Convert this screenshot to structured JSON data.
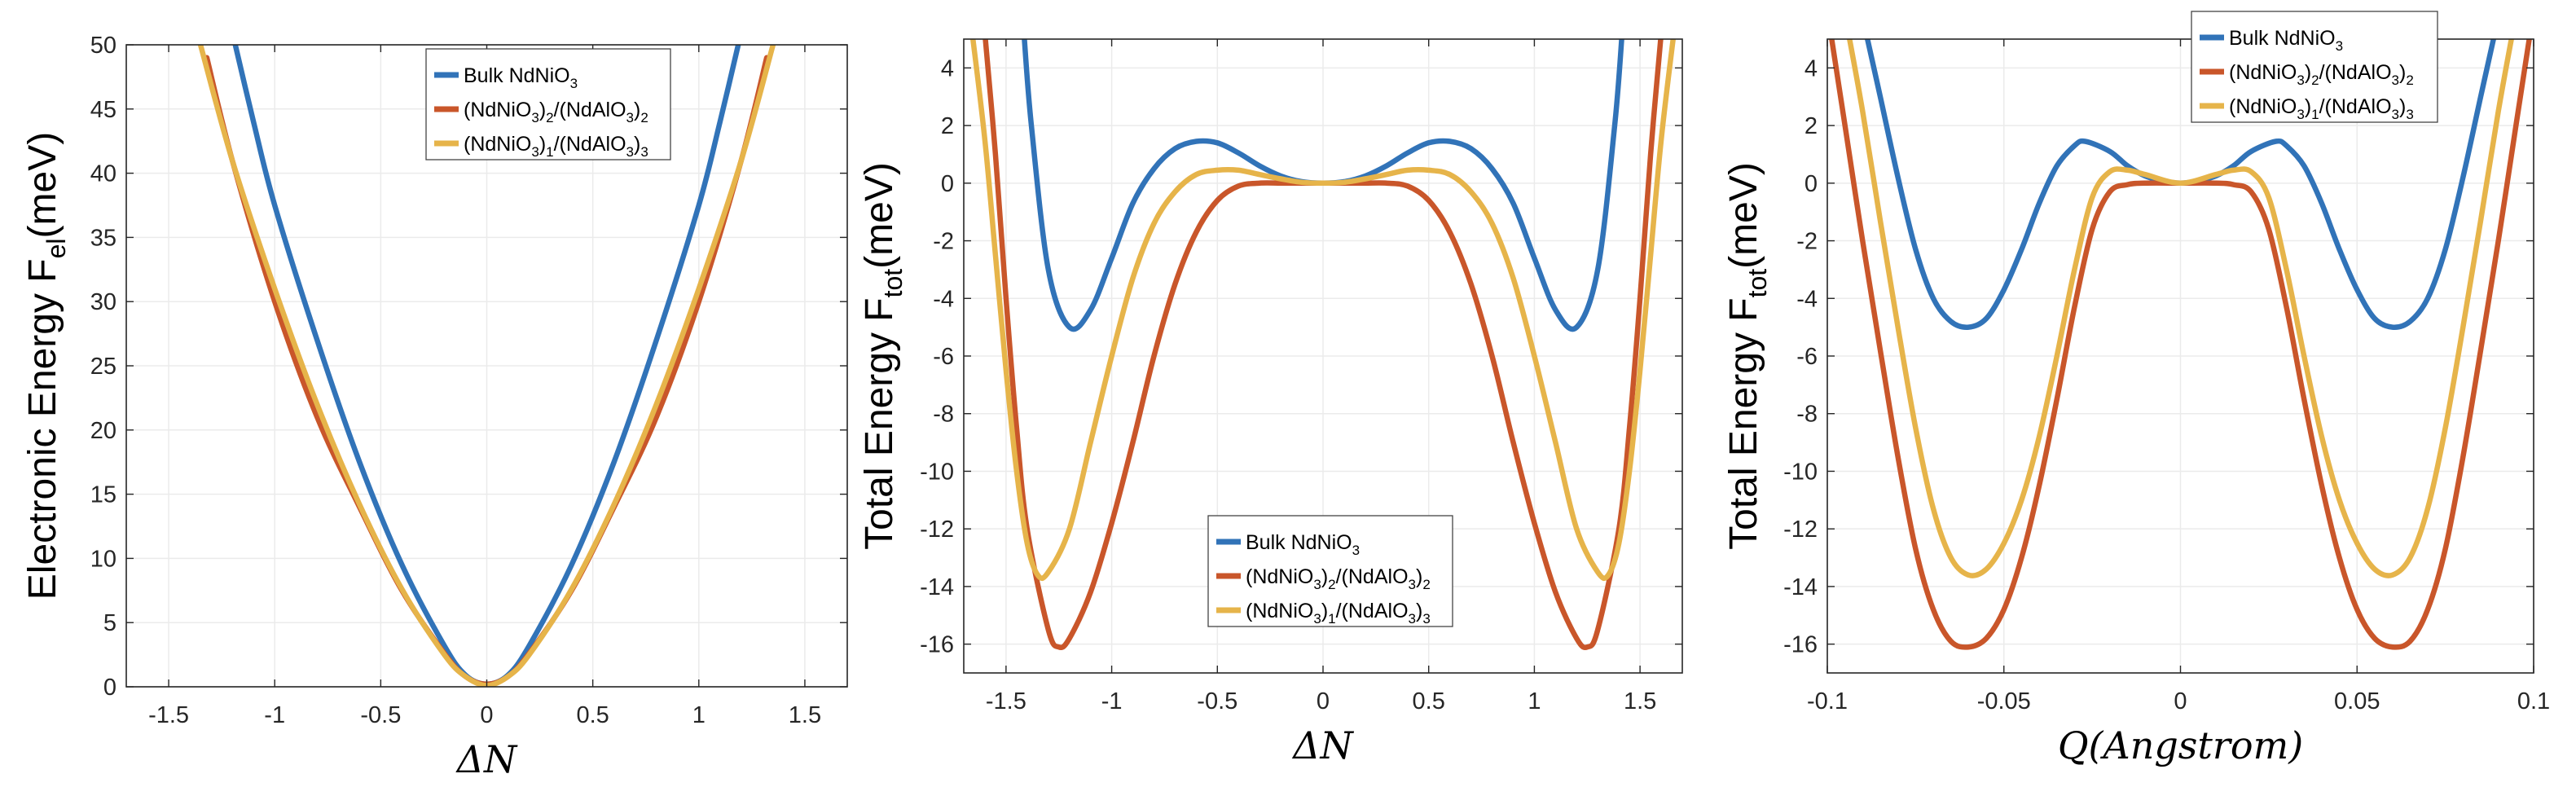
{
  "colors": {
    "bulk": "#3173B8",
    "n2": "#C9562A",
    "n1": "#E6B44A",
    "grid": "#EBEBEB",
    "axis": "#262626"
  },
  "chart_data": [
    {
      "type": "line",
      "ylabel": {
        "main": "Electronic Energy F",
        "sub": "el",
        "tail": "(meV)"
      },
      "xlabel": "ΔN",
      "xlim": [
        -1.7,
        1.7
      ],
      "ylim": [
        0,
        50
      ],
      "xticks": [
        "-1.5",
        "-1",
        "-0.5",
        "0",
        "0.5",
        "1",
        "1.5"
      ],
      "xtick_values": [
        -1.5,
        -1,
        -0.5,
        0,
        0.5,
        1,
        1.5
      ],
      "yticks": [
        "0",
        "5",
        "10",
        "15",
        "20",
        "25",
        "30",
        "35",
        "40",
        "45",
        "50"
      ],
      "ytick_values": [
        0,
        5,
        10,
        15,
        20,
        25,
        30,
        35,
        40,
        45,
        50
      ],
      "legend_position": "top-center",
      "legend": [
        {
          "key": "bulk",
          "main": "Bulk NdNiO",
          "sub1": "3",
          "mid": "",
          "sub2": "",
          "tail": ""
        },
        {
          "key": "n2",
          "main": "(NdNiO",
          "sub1": "3",
          "mid": ")",
          "sub2": "2",
          "tail": "/(NdAlO",
          "sub3": "3",
          "end": ")",
          "sub4": "2"
        },
        {
          "key": "n1",
          "main": "(NdNiO",
          "sub1": "3",
          "mid": ")",
          "sub2": "1",
          "tail": "/(NdAlO",
          "sub3": "3",
          "end": ")",
          "sub4": "3"
        }
      ],
      "series": [
        {
          "name": "Bulk NdNiO3",
          "key": "bulk",
          "x": [
            -1.2,
            -1.1,
            -1.0,
            -0.8,
            -0.6,
            -0.4,
            -0.2,
            -0.1,
            0,
            0.1,
            0.2,
            0.4,
            0.6,
            0.8,
            1.0,
            1.1,
            1.2
          ],
          "y": [
            51.0,
            44.0,
            37.5,
            27.0,
            17.5,
            9.5,
            3.2,
            0.9,
            0.2,
            0.9,
            3.2,
            9.5,
            17.5,
            27.0,
            37.5,
            44.0,
            51.0
          ]
        },
        {
          "name": "(NdNiO3)2/(NdAlO3)2",
          "key": "n2",
          "x": [
            -1.32,
            -1.2,
            -1.0,
            -0.8,
            -0.6,
            -0.4,
            -0.2,
            -0.1,
            0,
            0.1,
            0.2,
            0.4,
            0.6,
            0.8,
            1.0,
            1.2,
            1.32
          ],
          "y": [
            49.0,
            41.0,
            30.0,
            21.0,
            14.0,
            7.5,
            2.6,
            0.8,
            0.2,
            0.8,
            2.6,
            7.5,
            14.0,
            21.0,
            30.0,
            41.0,
            49.0
          ]
        },
        {
          "name": "(NdNiO3)1/(NdAlO3)3",
          "key": "n1",
          "x": [
            -1.35,
            -1.2,
            -1.0,
            -0.8,
            -0.6,
            -0.4,
            -0.2,
            -0.1,
            0,
            0.1,
            0.2,
            0.4,
            0.6,
            0.8,
            1.0,
            1.2,
            1.35
          ],
          "y": [
            50.0,
            41.0,
            31.0,
            22.0,
            14.2,
            7.6,
            2.5,
            0.8,
            0.1,
            0.8,
            2.5,
            7.6,
            14.2,
            22.0,
            31.0,
            41.0,
            50.0
          ]
        }
      ]
    },
    {
      "type": "line",
      "ylabel": {
        "main": "Total Energy F",
        "sub": "tot",
        "tail": "(meV)"
      },
      "xlabel": "ΔN",
      "xlim": [
        -1.7,
        1.7
      ],
      "ylim": [
        -17,
        5
      ],
      "xticks": [
        "-1.5",
        "-1",
        "-0.5",
        "0",
        "0.5",
        "1",
        "1.5"
      ],
      "xtick_values": [
        -1.5,
        -1,
        -0.5,
        0,
        0.5,
        1,
        1.5
      ],
      "yticks": [
        "-16",
        "-14",
        "-12",
        "-10",
        "-8",
        "-6",
        "-4",
        "-2",
        "0",
        "2",
        "4"
      ],
      "ytick_values": [
        -16,
        -14,
        -12,
        -10,
        -8,
        -6,
        -4,
        -2,
        0,
        2,
        4
      ],
      "legend_position": "bottom-center",
      "legend": [
        {
          "key": "bulk",
          "main": "Bulk NdNiO",
          "sub1": "3",
          "mid": "",
          "sub2": "",
          "tail": ""
        },
        {
          "key": "n2",
          "main": "(NdNiO",
          "sub1": "3",
          "mid": ")",
          "sub2": "2",
          "tail": "/(NdAlO",
          "sub3": "3",
          "end": ")",
          "sub4": "2"
        },
        {
          "key": "n1",
          "main": "(NdNiO",
          "sub1": "3",
          "mid": ")",
          "sub2": "1",
          "tail": "/(NdAlO",
          "sub3": "3",
          "end": ")",
          "sub4": "3"
        }
      ],
      "series": [
        {
          "name": "Bulk NdNiO3",
          "key": "bulk",
          "x": [
            -1.415,
            -1.38,
            -1.3,
            -1.2,
            -1.1,
            -1.0,
            -0.9,
            -0.8,
            -0.7,
            -0.6,
            -0.5,
            -0.4,
            -0.3,
            -0.2,
            -0.1,
            0,
            0.1,
            0.2,
            0.3,
            0.4,
            0.5,
            0.6,
            0.7,
            0.8,
            0.9,
            1.0,
            1.1,
            1.2,
            1.3,
            1.38,
            1.415
          ],
          "y": [
            5.2,
            2.0,
            -3.0,
            -5.0,
            -4.4,
            -2.6,
            -0.7,
            0.5,
            1.2,
            1.45,
            1.4,
            1.05,
            0.6,
            0.25,
            0.05,
            0.0,
            0.05,
            0.25,
            0.6,
            1.05,
            1.4,
            1.45,
            1.2,
            0.5,
            -0.7,
            -2.6,
            -4.4,
            -5.0,
            -3.0,
            2.0,
            5.2
          ]
        },
        {
          "name": "(NdNiO3)2/(NdAlO3)2",
          "key": "n2",
          "x": [
            -1.6,
            -1.55,
            -1.5,
            -1.45,
            -1.4,
            -1.3,
            -1.25,
            -1.2,
            -1.1,
            -1.0,
            -0.9,
            -0.8,
            -0.7,
            -0.6,
            -0.5,
            -0.4,
            -0.3,
            -0.2,
            -0.1,
            0,
            0.1,
            0.2,
            0.3,
            0.4,
            0.5,
            0.6,
            0.7,
            0.8,
            0.9,
            1.0,
            1.1,
            1.2,
            1.25,
            1.3,
            1.4,
            1.45,
            1.5,
            1.55,
            1.6
          ],
          "y": [
            5.2,
            1.0,
            -4.0,
            -8.5,
            -12.0,
            -15.5,
            -16.1,
            -15.8,
            -14.2,
            -11.8,
            -9.0,
            -6.0,
            -3.5,
            -1.7,
            -0.6,
            -0.1,
            0.0,
            0.0,
            0.0,
            0.0,
            0.0,
            0.0,
            0.0,
            -0.1,
            -0.6,
            -1.7,
            -3.5,
            -6.0,
            -9.0,
            -11.8,
            -14.2,
            -15.8,
            -16.1,
            -15.5,
            -12.0,
            -8.5,
            -4.0,
            1.0,
            5.2
          ]
        },
        {
          "name": "(NdNiO3)1/(NdAlO3)3",
          "key": "n1",
          "x": [
            -1.66,
            -1.6,
            -1.55,
            -1.5,
            -1.45,
            -1.4,
            -1.35,
            -1.3,
            -1.2,
            -1.1,
            -1.0,
            -0.9,
            -0.8,
            -0.7,
            -0.6,
            -0.5,
            -0.4,
            -0.3,
            -0.2,
            -0.1,
            0,
            0.1,
            0.2,
            0.3,
            0.4,
            0.5,
            0.6,
            0.7,
            0.8,
            0.9,
            1.0,
            1.1,
            1.2,
            1.3,
            1.35,
            1.4,
            1.45,
            1.5,
            1.55,
            1.6,
            1.66
          ],
          "y": [
            5.2,
            1.5,
            -2.5,
            -6.5,
            -10.0,
            -12.5,
            -13.6,
            -13.5,
            -12.0,
            -9.0,
            -6.0,
            -3.3,
            -1.4,
            -0.3,
            0.3,
            0.45,
            0.45,
            0.3,
            0.15,
            0.03,
            0.0,
            0.03,
            0.15,
            0.3,
            0.45,
            0.45,
            0.3,
            -0.3,
            -1.4,
            -3.3,
            -6.0,
            -9.0,
            -12.0,
            -13.5,
            -13.6,
            -12.5,
            -10.0,
            -6.5,
            -2.5,
            1.5,
            5.2
          ]
        }
      ]
    },
    {
      "type": "line",
      "ylabel": {
        "main": "Total Energy F",
        "sub": "tot",
        "tail": "(meV)"
      },
      "xlabel": "Q(Angstrom)",
      "xlim": [
        -0.1,
        0.1
      ],
      "ylim": [
        -17,
        5
      ],
      "xticks": [
        "-0.1",
        "-0.05",
        "0",
        "0.05",
        "0.1"
      ],
      "xtick_values": [
        -0.1,
        -0.05,
        0,
        0.05,
        0.1
      ],
      "yticks": [
        "-16",
        "-14",
        "-12",
        "-10",
        "-8",
        "-6",
        "-4",
        "-2",
        "0",
        "2",
        "4"
      ],
      "ytick_values": [
        -16,
        -14,
        -12,
        -10,
        -8,
        -6,
        -4,
        -2,
        0,
        2,
        4
      ],
      "legend_position": "top-center",
      "legend": [
        {
          "key": "bulk",
          "main": "Bulk NdNiO",
          "sub1": "3",
          "mid": "",
          "sub2": "",
          "tail": ""
        },
        {
          "key": "n2",
          "main": "(NdNiO",
          "sub1": "3",
          "mid": ")",
          "sub2": "2",
          "tail": "/(NdAlO",
          "sub3": "3",
          "end": ")",
          "sub4": "2"
        },
        {
          "key": "n1",
          "main": "(NdNiO",
          "sub1": "3",
          "mid": ")",
          "sub2": "1",
          "tail": "/(NdAlO",
          "sub3": "3",
          "end": ")",
          "sub4": "3"
        }
      ],
      "series": [
        {
          "name": "Bulk NdNiO3",
          "key": "bulk",
          "x": [
            -0.089,
            -0.085,
            -0.08,
            -0.075,
            -0.07,
            -0.065,
            -0.06,
            -0.055,
            -0.05,
            -0.045,
            -0.04,
            -0.035,
            -0.03,
            -0.027,
            -0.02,
            -0.015,
            -0.01,
            -0.005,
            0,
            0.005,
            0.01,
            0.015,
            0.02,
            0.027,
            0.03,
            0.035,
            0.04,
            0.045,
            0.05,
            0.055,
            0.06,
            0.065,
            0.07,
            0.075,
            0.08,
            0.085,
            0.089
          ],
          "y": [
            5.2,
            3.0,
            0.2,
            -2.3,
            -4.0,
            -4.8,
            -5.0,
            -4.7,
            -3.7,
            -2.3,
            -0.7,
            0.6,
            1.3,
            1.45,
            1.1,
            0.6,
            0.25,
            0.08,
            0.0,
            0.08,
            0.25,
            0.6,
            1.1,
            1.45,
            1.3,
            0.6,
            -0.7,
            -2.3,
            -3.7,
            -4.7,
            -5.0,
            -4.8,
            -4.0,
            -2.3,
            0.2,
            3.0,
            5.2
          ]
        },
        {
          "name": "(NdNiO3)2/(NdAlO3)2",
          "key": "n2",
          "x": [
            -0.099,
            -0.095,
            -0.09,
            -0.085,
            -0.08,
            -0.075,
            -0.07,
            -0.065,
            -0.06,
            -0.055,
            -0.05,
            -0.045,
            -0.04,
            -0.035,
            -0.03,
            -0.025,
            -0.02,
            -0.015,
            -0.01,
            0,
            0.01,
            0.015,
            0.02,
            0.025,
            0.03,
            0.035,
            0.04,
            0.045,
            0.05,
            0.055,
            0.06,
            0.065,
            0.07,
            0.075,
            0.08,
            0.085,
            0.09,
            0.095,
            0.099
          ],
          "y": [
            5.2,
            2.0,
            -2.0,
            -5.8,
            -9.5,
            -12.7,
            -14.8,
            -15.9,
            -16.1,
            -15.8,
            -14.8,
            -13.0,
            -10.5,
            -7.5,
            -4.3,
            -1.6,
            -0.3,
            -0.05,
            0.0,
            0.0,
            0.0,
            -0.05,
            -0.3,
            -1.6,
            -4.3,
            -7.5,
            -10.5,
            -13.0,
            -14.8,
            -15.8,
            -16.1,
            -15.9,
            -14.8,
            -12.7,
            -9.5,
            -5.8,
            -2.0,
            2.0,
            5.2
          ]
        },
        {
          "name": "(NdNiO3)1/(NdAlO3)3",
          "key": "n1",
          "x": [
            -0.094,
            -0.09,
            -0.085,
            -0.08,
            -0.075,
            -0.07,
            -0.065,
            -0.06,
            -0.055,
            -0.05,
            -0.045,
            -0.04,
            -0.035,
            -0.03,
            -0.025,
            -0.02,
            -0.015,
            -0.01,
            0,
            0.01,
            0.015,
            0.02,
            0.025,
            0.03,
            0.035,
            0.04,
            0.045,
            0.05,
            0.055,
            0.06,
            0.065,
            0.07,
            0.075,
            0.08,
            0.085,
            0.09,
            0.094
          ],
          "y": [
            5.2,
            2.5,
            -1.3,
            -5.0,
            -8.5,
            -11.3,
            -13.0,
            -13.6,
            -13.4,
            -12.5,
            -11.0,
            -8.8,
            -6.0,
            -3.0,
            -0.5,
            0.4,
            0.45,
            0.3,
            0.0,
            0.3,
            0.45,
            0.4,
            -0.5,
            -3.0,
            -6.0,
            -8.8,
            -11.0,
            -12.5,
            -13.4,
            -13.6,
            -13.0,
            -11.3,
            -8.5,
            -5.0,
            -1.3,
            2.5,
            5.2
          ]
        }
      ]
    }
  ]
}
